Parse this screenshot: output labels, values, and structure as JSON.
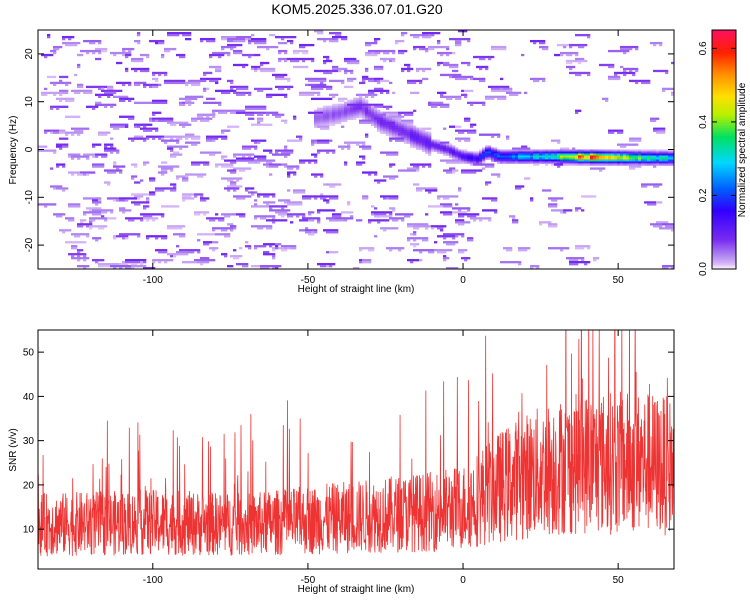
{
  "page": {
    "title": "KOM5.2025.336.07.01.G20"
  },
  "colors": {
    "snr_line": "#ee3333",
    "palette": [
      "#ffffff",
      "#d8b8f8",
      "#b48cf2",
      "#7a2cf0",
      "#3000ff",
      "#0060ff",
      "#00d8ff",
      "#00e060",
      "#b8f000",
      "#ffe000",
      "#ff9000",
      "#ff2000",
      "#ff1060"
    ]
  },
  "chart_data": [
    {
      "type": "heatmap",
      "title": "KOM5.2025.336.07.01.G20",
      "xlabel": "Height of straight line (km)",
      "ylabel": "Frequency (Hz)",
      "xlim": [
        -137,
        68
      ],
      "ylim": [
        -25,
        25
      ],
      "xticks": [
        -100,
        -50,
        0,
        50
      ],
      "xtick_labels": [
        "-100",
        "-50",
        "0",
        "50"
      ],
      "yticks": [
        -20,
        -10,
        0,
        10,
        20
      ],
      "ytick_labels": [
        "-20",
        "-10",
        "0",
        "10",
        "20"
      ],
      "colorbar": {
        "label": "Normalized spectral amplitude",
        "range": [
          0,
          0.65
        ],
        "ticks": [
          0.0,
          0.2,
          0.4,
          0.6
        ],
        "tick_labels": [
          "0.0",
          "0.2",
          "0.4",
          "0.6"
        ]
      },
      "signal_track": {
        "description_points_km_hz": [
          [
            -48,
            6.5
          ],
          [
            -40,
            7.5
          ],
          [
            -33,
            9
          ],
          [
            -27,
            6
          ],
          [
            -20,
            4
          ],
          [
            -15,
            2.5
          ],
          [
            -10,
            1
          ],
          [
            -5,
            0
          ],
          [
            0,
            -1.5
          ],
          [
            5,
            -2
          ],
          [
            8,
            -0.5
          ],
          [
            12,
            -1.5
          ],
          [
            20,
            -1.5
          ],
          [
            30,
            -1.5
          ],
          [
            40,
            -1.6
          ],
          [
            50,
            -1.7
          ],
          [
            60,
            -1.8
          ],
          [
            68,
            -1.8
          ]
        ],
        "amplitude_points_km": [
          [
            -48,
            0.05
          ],
          [
            -30,
            0.08
          ],
          [
            -15,
            0.1
          ],
          [
            0,
            0.12
          ],
          [
            10,
            0.22
          ],
          [
            20,
            0.28
          ],
          [
            30,
            0.36
          ],
          [
            40,
            0.58
          ],
          [
            50,
            0.5
          ],
          [
            60,
            0.35
          ],
          [
            68,
            0.3
          ]
        ]
      },
      "noise_level": 0.03
    },
    {
      "type": "line",
      "xlabel": "Height of straight line (km)",
      "ylabel": "SNR (v/v)",
      "xlim": [
        -137,
        68
      ],
      "ylim": [
        1,
        55
      ],
      "xticks": [
        -100,
        -50,
        0,
        50
      ],
      "xtick_labels": [
        "-100",
        "-50",
        "0",
        "50"
      ],
      "yticks": [
        10,
        20,
        30,
        40,
        50
      ],
      "ytick_labels": [
        "10",
        "20",
        "30",
        "40",
        "50"
      ],
      "trend_km_snr": [
        [
          -137,
          11
        ],
        [
          -100,
          11.5
        ],
        [
          -70,
          11
        ],
        [
          -50,
          12
        ],
        [
          -30,
          13
        ],
        [
          -10,
          14
        ],
        [
          0,
          15
        ],
        [
          10,
          19
        ],
        [
          20,
          22
        ],
        [
          30,
          24
        ],
        [
          40,
          25
        ],
        [
          50,
          25
        ],
        [
          60,
          25
        ],
        [
          68,
          24
        ]
      ],
      "series": [
        {
          "name": "",
          "color": "#ee3333"
        }
      ]
    }
  ]
}
